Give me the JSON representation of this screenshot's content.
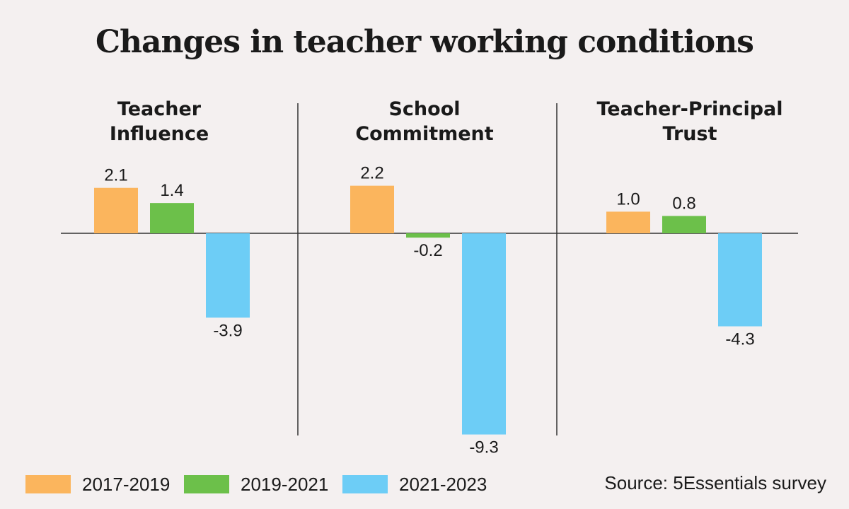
{
  "chart_data": {
    "type": "bar",
    "title": "Changes in teacher working conditions",
    "panels": [
      {
        "label": [
          "Teacher",
          "Influence"
        ],
        "values": [
          2.1,
          1.4,
          -3.9
        ],
        "value_labels": [
          "2.1",
          "1.4",
          "-3.9"
        ]
      },
      {
        "label": [
          "School",
          "Commitment"
        ],
        "values": [
          2.2,
          -0.2,
          -9.3
        ],
        "value_labels": [
          "2.2",
          "-0.2",
          "-9.3"
        ]
      },
      {
        "label": [
          "Teacher-Principal",
          "Trust"
        ],
        "values": [
          1.0,
          0.8,
          -4.3
        ],
        "value_labels": [
          "1.0",
          "0.8",
          "-4.3"
        ]
      }
    ],
    "series": [
      {
        "name": "2017-2019",
        "color": "#fbb55d"
      },
      {
        "name": "2019-2021",
        "color": "#6cc04a"
      },
      {
        "name": "2021-2023",
        "color": "#6dcdf6"
      }
    ],
    "ylim": [
      -9.3,
      2.2
    ],
    "legend_position": "bottom-left",
    "source": "Source: 5Essentials survey"
  }
}
